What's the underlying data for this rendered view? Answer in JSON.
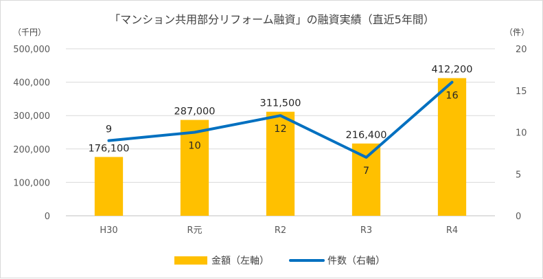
{
  "chart_data": {
    "type": "bar+line",
    "title": "「マンション共用部分リフォーム融資」の融資実績（直近5年間）",
    "left_axis_unit": "（千円）",
    "right_axis_unit": "（件）",
    "categories": [
      "H30",
      "R元",
      "R2",
      "R3",
      "R4"
    ],
    "series": [
      {
        "name": "金額（左軸）",
        "type": "bar",
        "axis": "left",
        "color": "#FFC000",
        "values": [
          176100,
          287000,
          311500,
          216400,
          412200
        ],
        "labels": [
          "176,100",
          "287,000",
          "311,500",
          "216,400",
          "412,200"
        ]
      },
      {
        "name": "件数（右軸）",
        "type": "line",
        "axis": "right",
        "color": "#0070C0",
        "values": [
          9,
          10,
          12,
          7,
          16
        ],
        "labels": [
          "9",
          "10",
          "12",
          "7",
          "16"
        ]
      }
    ],
    "left_ylim": [
      0,
      500000
    ],
    "left_ticks": [
      "0",
      "100,000",
      "200,000",
      "300,000",
      "400,000",
      "500,000"
    ],
    "right_ylim": [
      0,
      20
    ],
    "right_ticks": [
      "0",
      "5",
      "10",
      "15",
      "20"
    ],
    "grid": true,
    "legend_position": "bottom"
  }
}
